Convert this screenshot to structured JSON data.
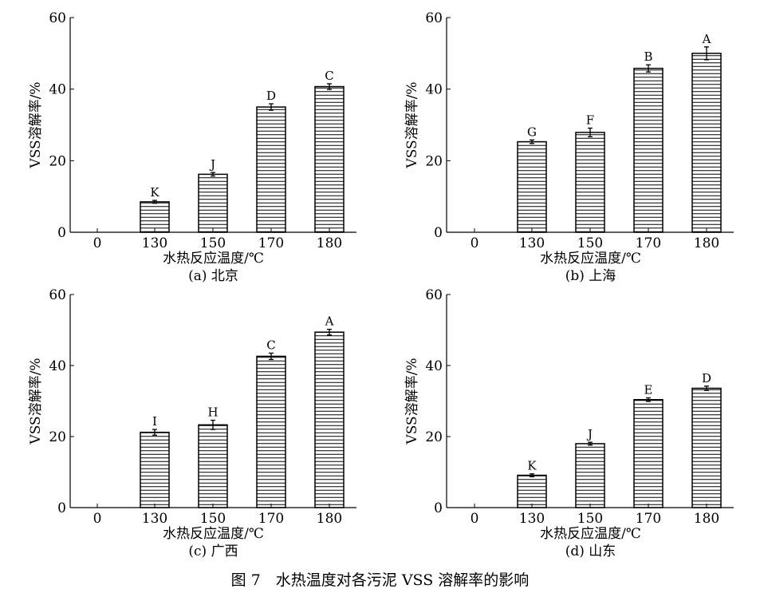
{
  "figure_caption": "图 7　水热温度对各污泥 VSS 溶解率的影响",
  "colors": {
    "ink": "#000000",
    "background": "#ffffff"
  },
  "chart_data": [
    {
      "type": "bar",
      "panel_label": "(a) 北京",
      "xlabel": "水热反应温度/℃",
      "ylabel": "VSS溶解率/%",
      "categories": [
        "0",
        "130",
        "150",
        "170",
        "180"
      ],
      "values": [
        0,
        8.5,
        16.2,
        35.0,
        40.7
      ],
      "errors": [
        0,
        0.4,
        0.5,
        0.9,
        0.8
      ],
      "letters": [
        "",
        "K",
        "J",
        "D",
        "C"
      ],
      "ylim": [
        0,
        60
      ],
      "yticks": [
        0,
        20,
        40,
        60
      ],
      "grid": false
    },
    {
      "type": "bar",
      "panel_label": "(b) 上海",
      "xlabel": "水热反应温度/℃",
      "ylabel": "VSS溶解率/%",
      "categories": [
        "0",
        "130",
        "150",
        "170",
        "180"
      ],
      "values": [
        0,
        25.3,
        27.9,
        45.8,
        50.0
      ],
      "errors": [
        0,
        0.5,
        1.2,
        1.0,
        1.8
      ],
      "letters": [
        "",
        "G",
        "F",
        "B",
        "A"
      ],
      "ylim": [
        0,
        60
      ],
      "yticks": [
        0,
        20,
        40,
        60
      ],
      "grid": false
    },
    {
      "type": "bar",
      "panel_label": "(c) 广西",
      "xlabel": "水热反应温度/℃",
      "ylabel": "VSS溶解率/%",
      "categories": [
        "0",
        "130",
        "150",
        "170",
        "180"
      ],
      "values": [
        0,
        21.2,
        23.3,
        42.6,
        49.4
      ],
      "errors": [
        0,
        0.8,
        1.3,
        0.9,
        0.8
      ],
      "letters": [
        "",
        "I",
        "H",
        "C",
        "A"
      ],
      "ylim": [
        0,
        60
      ],
      "yticks": [
        0,
        20,
        40,
        60
      ],
      "grid": false
    },
    {
      "type": "bar",
      "panel_label": "(d) 山东",
      "xlabel": "水热反应温度/℃",
      "ylabel": "VSS溶解率/%",
      "categories": [
        "0",
        "130",
        "150",
        "170",
        "180"
      ],
      "values": [
        0,
        9.1,
        18.0,
        30.4,
        33.6
      ],
      "errors": [
        0,
        0.4,
        0.4,
        0.5,
        0.6
      ],
      "letters": [
        "",
        "K",
        "J",
        "E",
        "D"
      ],
      "ylim": [
        0,
        60
      ],
      "yticks": [
        0,
        20,
        40,
        60
      ],
      "grid": false
    }
  ]
}
